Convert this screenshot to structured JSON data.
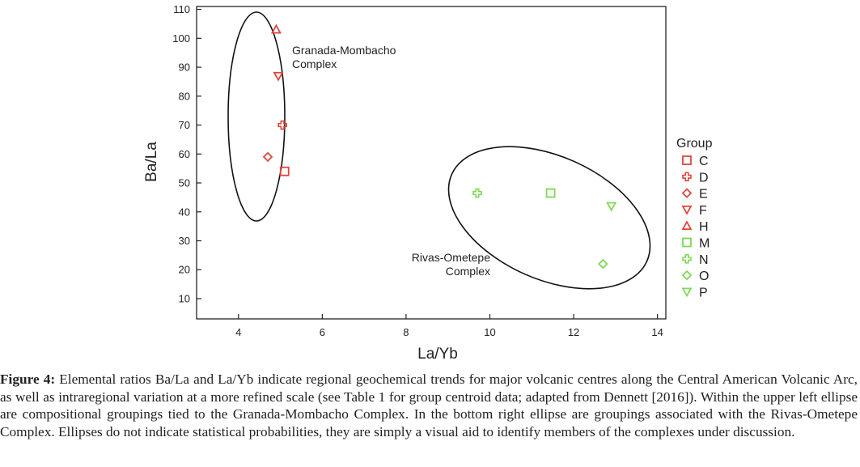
{
  "chart_data": {
    "type": "scatter",
    "xlabel": "La/Yb",
    "ylabel": "Ba/La",
    "xlim": [
      3,
      14.2
    ],
    "ylim": [
      3,
      111
    ],
    "xticks": [
      4,
      6,
      8,
      10,
      12,
      14
    ],
    "yticks": [
      10,
      20,
      30,
      40,
      50,
      60,
      70,
      80,
      90,
      100,
      110
    ],
    "legend_title": "Group",
    "legend_position": "right",
    "series": [
      {
        "name": "C",
        "marker": "square",
        "color": "#e0453a",
        "x": [
          5.1
        ],
        "y": [
          54
        ]
      },
      {
        "name": "D",
        "marker": "cross",
        "color": "#e0453a",
        "x": [
          5.05
        ],
        "y": [
          70
        ]
      },
      {
        "name": "E",
        "marker": "diamond",
        "color": "#e0453a",
        "x": [
          4.7
        ],
        "y": [
          59
        ]
      },
      {
        "name": "F",
        "marker": "triangle-down",
        "color": "#e0453a",
        "x": [
          4.95
        ],
        "y": [
          87
        ]
      },
      {
        "name": "H",
        "marker": "triangle-up",
        "color": "#e0453a",
        "x": [
          4.9
        ],
        "y": [
          103
        ]
      },
      {
        "name": "M",
        "marker": "square",
        "color": "#7ed957",
        "x": [
          11.45
        ],
        "y": [
          46.5
        ]
      },
      {
        "name": "N",
        "marker": "cross",
        "color": "#7ed957",
        "x": [
          9.7
        ],
        "y": [
          46.5
        ]
      },
      {
        "name": "O",
        "marker": "diamond",
        "color": "#7ed957",
        "x": [
          12.7
        ],
        "y": [
          22
        ]
      },
      {
        "name": "P",
        "marker": "triangle-down",
        "color": "#7ed957",
        "x": [
          12.9
        ],
        "y": [
          42
        ]
      }
    ],
    "annotations": [
      {
        "lines": [
          "Granada-Mombacho",
          "Complex"
        ]
      },
      {
        "lines": [
          "Rivas-Ometepe",
          "Complex"
        ]
      }
    ]
  },
  "caption": {
    "label": "Figure 4:",
    "text": " Elemental ratios Ba/La and La/Yb indicate regional geochemical trends for major volcanic centres along the Central American Volcanic Arc, as well as intraregional variation at a more refined scale (see Table 1 for group centroid data; adapted from Dennett [2016]). Within the upper left ellipse are compositional groupings tied to the Granada-Mombacho Complex. In the bottom right ellipse are groupings associated with the Rivas-Ometepe Complex. Ellipses do not indicate statistical probabilities, they are simply a visual aid to identify members of the complexes under discussion."
  }
}
